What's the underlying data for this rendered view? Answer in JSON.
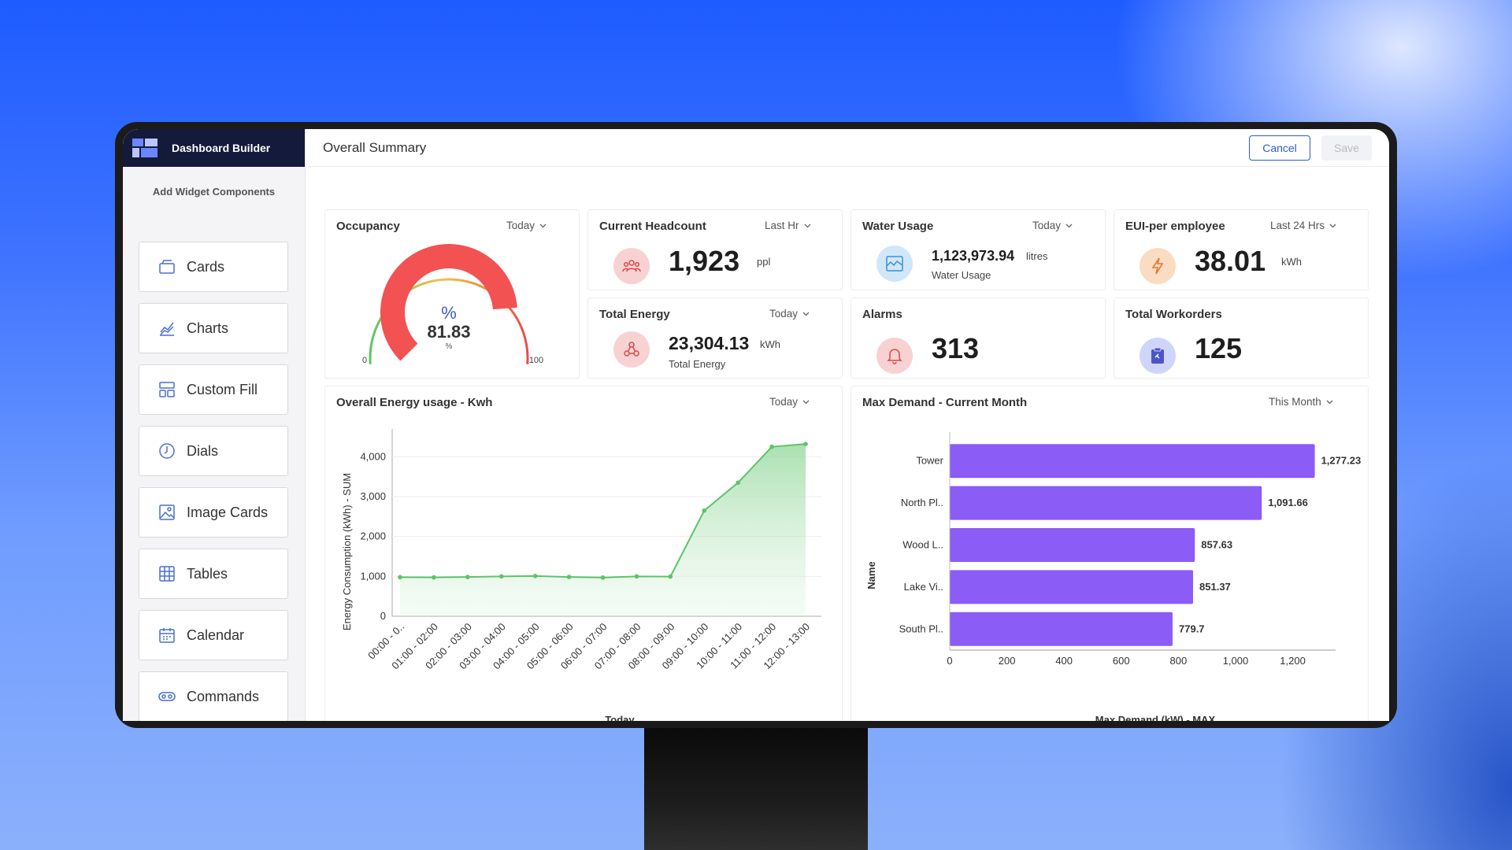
{
  "sidebar": {
    "title": "Dashboard Builder",
    "subtitle": "Add Widget Components",
    "items": [
      {
        "label": "Cards",
        "icon": "cards-icon"
      },
      {
        "label": "Charts",
        "icon": "charts-icon"
      },
      {
        "label": "Custom Fill",
        "icon": "custom-fill-icon"
      },
      {
        "label": "Dials",
        "icon": "dials-icon"
      },
      {
        "label": "Image Cards",
        "icon": "image-cards-icon"
      },
      {
        "label": "Tables",
        "icon": "tables-icon"
      },
      {
        "label": "Calendar",
        "icon": "calendar-icon"
      },
      {
        "label": "Commands",
        "icon": "commands-icon"
      }
    ]
  },
  "header": {
    "title": "Overall Summary",
    "cancel_label": "Cancel",
    "save_label": "Save"
  },
  "occupancy": {
    "title": "Occupancy",
    "period": "Today",
    "value": "81.83",
    "fraction": 0.8183,
    "symbol": "%",
    "unit": "%",
    "min": "0",
    "max": "100"
  },
  "headcount": {
    "title": "Current Headcount",
    "period": "Last Hr",
    "value": "1,923",
    "unit": "ppl"
  },
  "water": {
    "title": "Water Usage",
    "period": "Today",
    "value": "1,123,973.94",
    "unit": "litres",
    "sub": "Water Usage"
  },
  "eui": {
    "title": "EUI-per employee",
    "period": "Last 24 Hrs",
    "value": "38.01",
    "unit": "kWh"
  },
  "total_energy": {
    "title": "Total Energy",
    "period": "Today",
    "value": "23,304.13",
    "unit": "kWh",
    "sub": "Total Energy"
  },
  "alarms": {
    "title": "Alarms",
    "value": "313"
  },
  "workorders": {
    "title": "Total Workorders",
    "value": "125"
  },
  "energy_chart": {
    "title": "Overall Energy usage - Kwh",
    "period": "Today"
  },
  "demand_chart": {
    "title": "Max Demand - Current Month",
    "period": "This Month"
  },
  "colors": {
    "accent": "#2d5bd6",
    "bar": "#8b5cf6",
    "line": "#5cc466",
    "gauge_red": "#f25252"
  },
  "chart_data": [
    {
      "type": "area",
      "title": "Overall Energy usage - Kwh",
      "xlabel": "Today",
      "ylabel": "Energy Consumption (kWh) - SUM",
      "ylim": [
        0,
        4500
      ],
      "yticks": [
        "0",
        "1,000",
        "2,000",
        "3,000",
        "4,000"
      ],
      "categories": [
        "00:00 - 0..",
        "01:00 - 02:00",
        "02:00 - 03:00",
        "03:00 - 04:00",
        "04:00 - 05:00",
        "05:00 - 06:00",
        "06:00 - 07:00",
        "07:00 - 08:00",
        "08:00 - 09:00",
        "09:00 - 10:00",
        "10:00 - 11:00",
        "11:00 - 12:00",
        "12:00 - 13:00"
      ],
      "values": [
        980,
        975,
        985,
        1000,
        1010,
        985,
        970,
        1000,
        995,
        2650,
        3350,
        4250,
        4320
      ],
      "grid": true
    },
    {
      "type": "bar",
      "orientation": "horizontal",
      "title": "Max Demand - Current Month",
      "xlabel": "Max Demand (kW) - MAX",
      "ylabel": "Name",
      "xlim": [
        0,
        1350
      ],
      "xticks": [
        "0",
        "200",
        "400",
        "600",
        "800",
        "1,000",
        "1,200"
      ],
      "categories": [
        "Tower",
        "North Pl..",
        "Wood L..",
        "Lake Vi..",
        "South Pl.."
      ],
      "values": [
        1277.23,
        1091.66,
        857.63,
        851.37,
        779.7
      ],
      "value_labels": [
        "1,277.23",
        "1,091.66",
        "857.63",
        "851.37",
        "779.7"
      ]
    }
  ]
}
